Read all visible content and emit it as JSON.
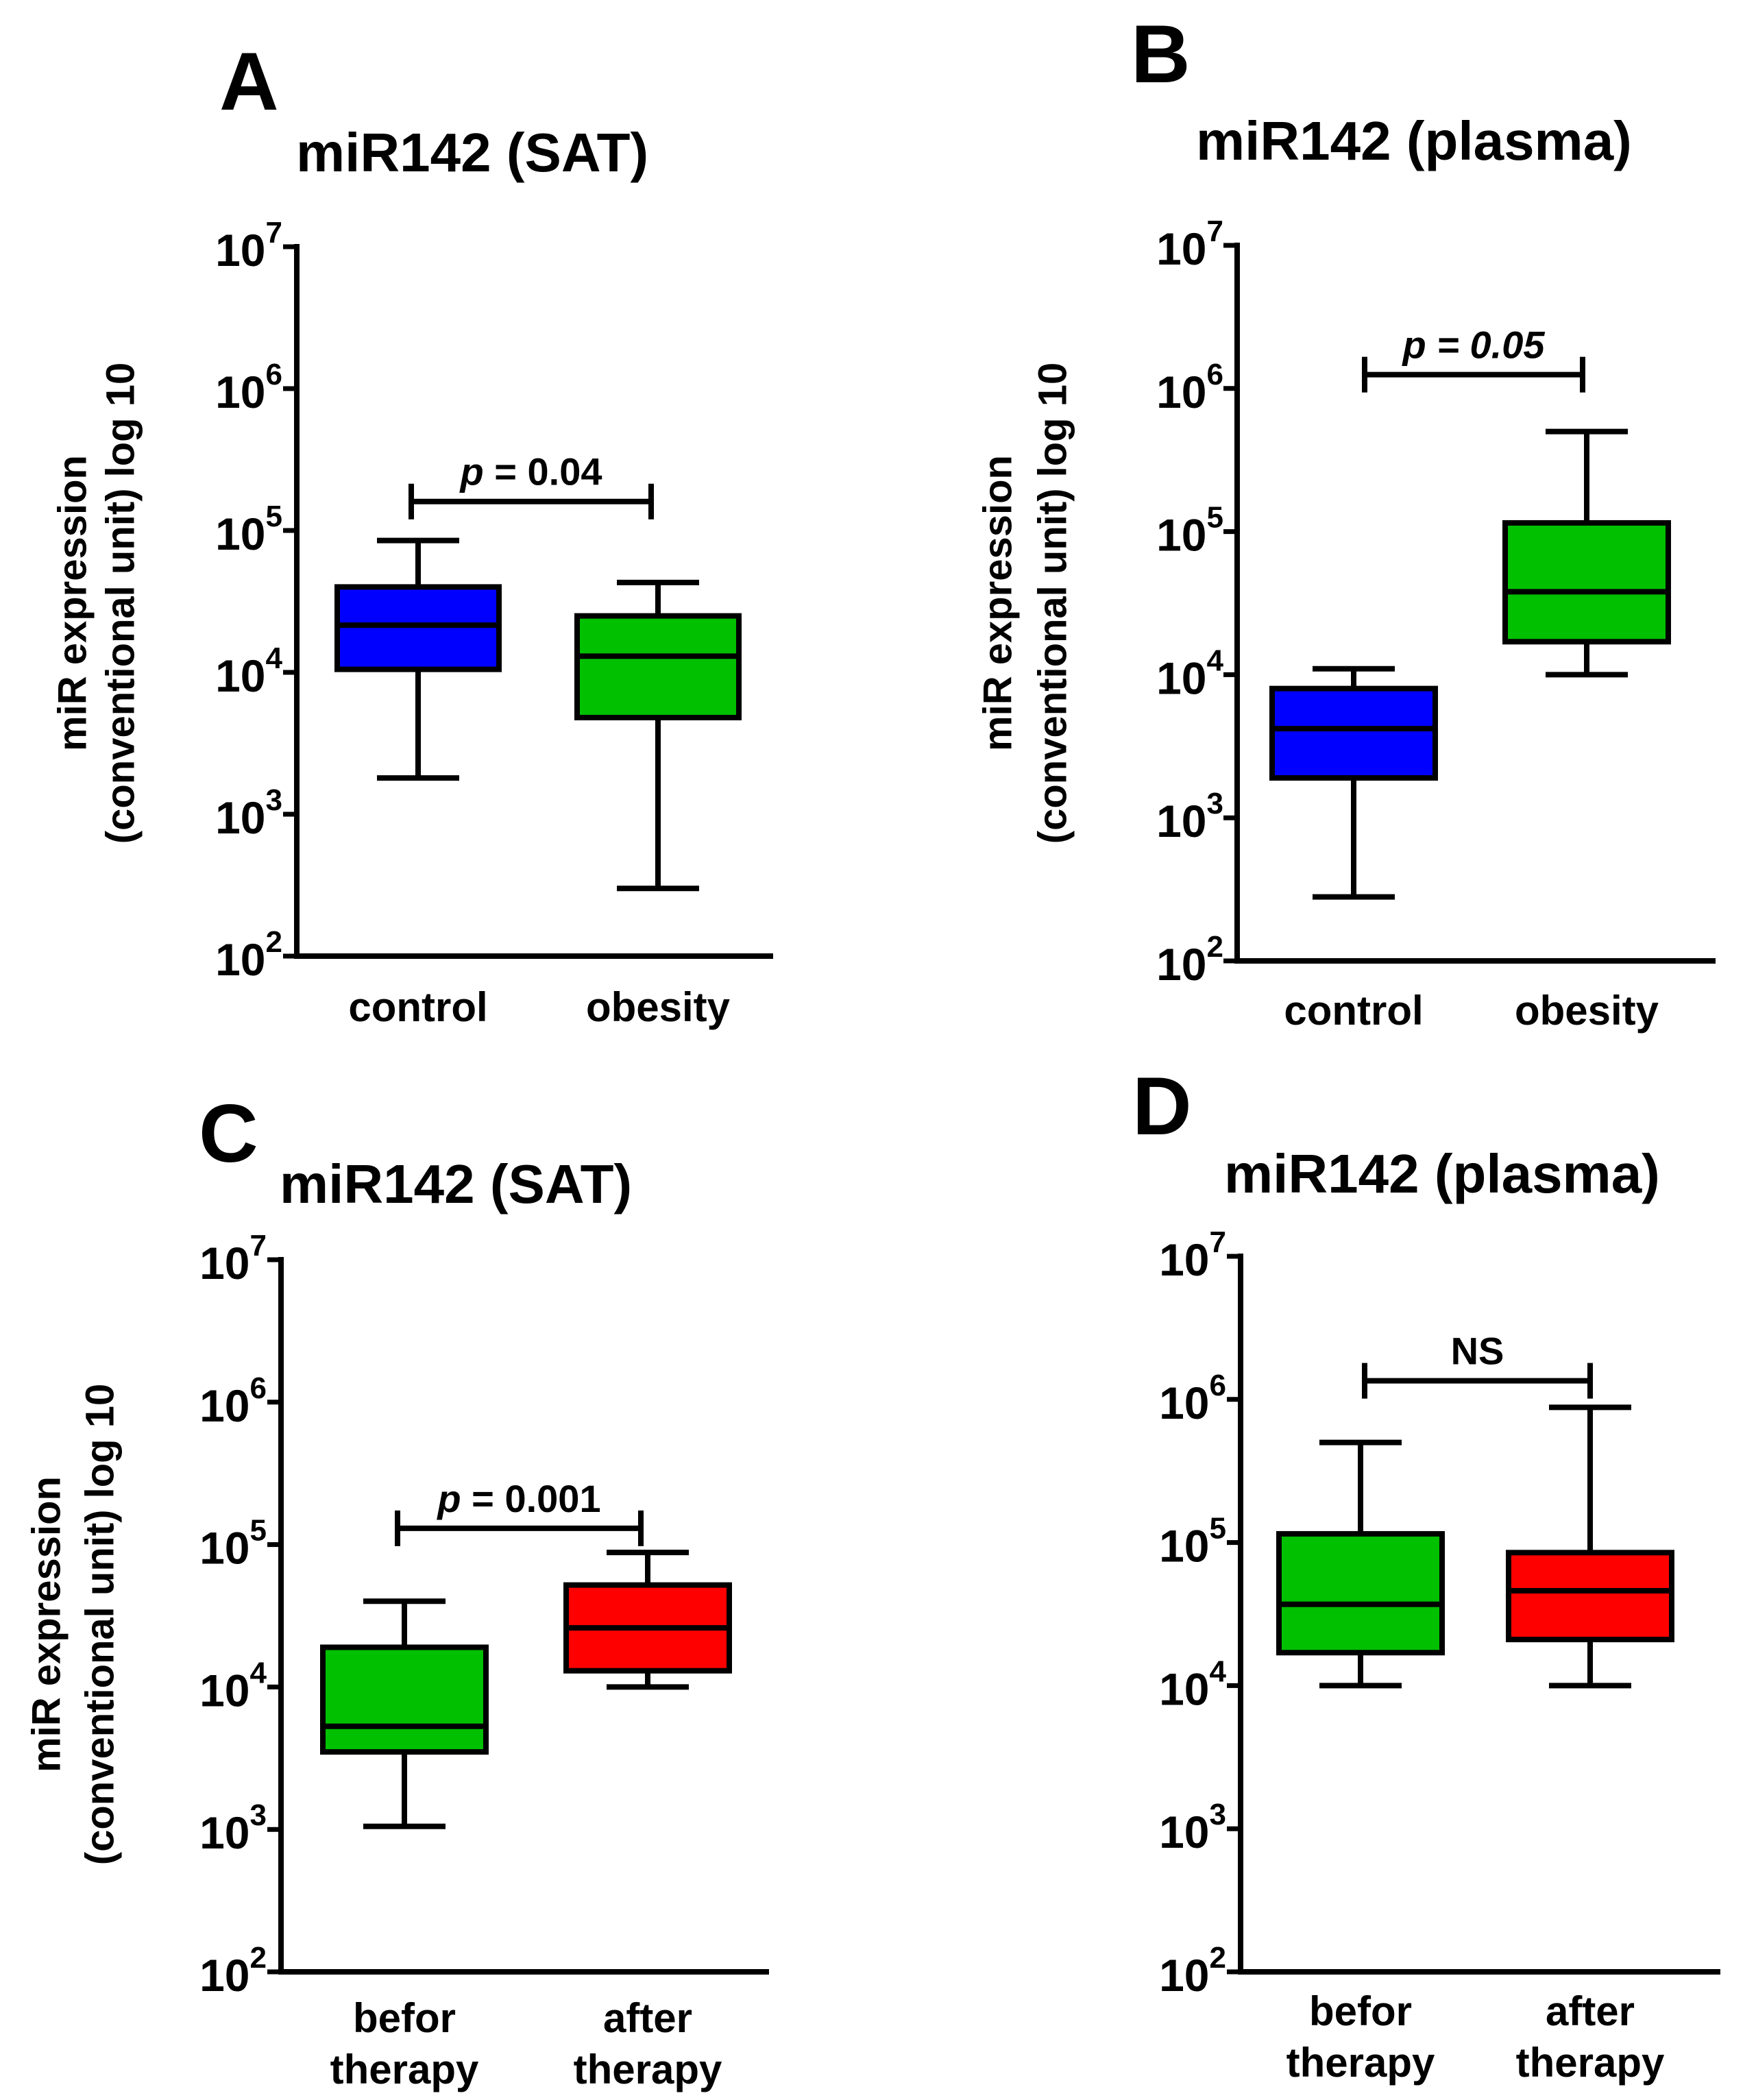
{
  "chart_data": [
    {
      "type": "box",
      "panel_letter": "A",
      "title": "miR142 (SAT)",
      "ylabel_line1": "miR expression",
      "ylabel_line2": "(conventional unit) log 10",
      "y_scale": "log10",
      "ylim": [
        100,
        10000000
      ],
      "yticks": [
        {
          "base": "10",
          "exp": "2"
        },
        {
          "base": "10",
          "exp": "3"
        },
        {
          "base": "10",
          "exp": "4"
        },
        {
          "base": "10",
          "exp": "5"
        },
        {
          "base": "10",
          "exp": "6"
        },
        {
          "base": "10",
          "exp": "7"
        }
      ],
      "categories": [
        [
          "control"
        ],
        [
          "obesity"
        ]
      ],
      "boxes": [
        {
          "category": "control",
          "min": 1800,
          "q1": 10500,
          "median": 21500,
          "q3": 40000,
          "max": 85000,
          "color": "#0000ff"
        },
        {
          "category": "obesity",
          "min": 300,
          "q1": 4800,
          "median": 13000,
          "q3": 25000,
          "max": 43000,
          "color": "#00c000"
        }
      ],
      "annotation": {
        "prefix": "p",
        "rest": " = 0.04",
        "italic": false,
        "bracket_y": 160000
      }
    },
    {
      "type": "box",
      "panel_letter": "B",
      "title": "miR142 (plasma)",
      "ylabel_line1": "miR expression",
      "ylabel_line2": "(conventional unit) log 10",
      "y_scale": "log10",
      "ylim": [
        100,
        10000000
      ],
      "yticks": [
        {
          "base": "10",
          "exp": "2"
        },
        {
          "base": "10",
          "exp": "3"
        },
        {
          "base": "10",
          "exp": "4"
        },
        {
          "base": "10",
          "exp": "5"
        },
        {
          "base": "10",
          "exp": "6"
        },
        {
          "base": "10",
          "exp": "7"
        }
      ],
      "categories": [
        [
          "control"
        ],
        [
          "obesity"
        ]
      ],
      "boxes": [
        {
          "category": "control",
          "min": 280,
          "q1": 1900,
          "median": 4200,
          "q3": 8000,
          "max": 11000,
          "color": "#0000ff"
        },
        {
          "category": "obesity",
          "min": 10000,
          "q1": 17000,
          "median": 38000,
          "q3": 115000,
          "max": 500000,
          "color": "#00c000"
        }
      ],
      "annotation": {
        "prefix": "p",
        "rest": " = 0.05",
        "italic": true,
        "bracket_y": 1250000
      }
    },
    {
      "type": "box",
      "panel_letter": "C",
      "title": "miR142 (SAT)",
      "ylabel_line1": "miR expression",
      "ylabel_line2": "(conventional unit) log 10",
      "y_scale": "log10",
      "ylim": [
        100,
        10000000
      ],
      "yticks": [
        {
          "base": "10",
          "exp": "2"
        },
        {
          "base": "10",
          "exp": "3"
        },
        {
          "base": "10",
          "exp": "4"
        },
        {
          "base": "10",
          "exp": "5"
        },
        {
          "base": "10",
          "exp": "6"
        },
        {
          "base": "10",
          "exp": "7"
        }
      ],
      "categories": [
        [
          "befor",
          "therapy"
        ],
        [
          "after",
          "therapy"
        ]
      ],
      "boxes": [
        {
          "category": "befor therapy",
          "min": 1050,
          "q1": 3500,
          "median": 5300,
          "q3": 19000,
          "max": 40000,
          "color": "#00c000"
        },
        {
          "category": "after therapy",
          "min": 10000,
          "q1": 13000,
          "median": 26000,
          "q3": 52000,
          "max": 88000,
          "color": "#ff0000"
        }
      ],
      "annotation": {
        "prefix": "p",
        "rest": " = 0.001",
        "italic": false,
        "bracket_y": 130000
      }
    },
    {
      "type": "box",
      "panel_letter": "D",
      "title": "miR142 (plasma)",
      "ylabel_line1": "",
      "ylabel_line2": "",
      "y_scale": "log10",
      "ylim": [
        100,
        10000000
      ],
      "yticks": [
        {
          "base": "10",
          "exp": "2"
        },
        {
          "base": "10",
          "exp": "3"
        },
        {
          "base": "10",
          "exp": "4"
        },
        {
          "base": "10",
          "exp": "5"
        },
        {
          "base": "10",
          "exp": "6"
        },
        {
          "base": "10",
          "exp": "7"
        }
      ],
      "categories": [
        [
          "befor",
          "therapy"
        ],
        [
          "after",
          "therapy"
        ]
      ],
      "boxes": [
        {
          "category": "befor therapy",
          "min": 10000,
          "q1": 17000,
          "median": 37000,
          "q3": 115000,
          "max": 500000,
          "color": "#00c000"
        },
        {
          "category": "after therapy",
          "min": 10000,
          "q1": 21000,
          "median": 46000,
          "q3": 85000,
          "max": 880000,
          "color": "#ff0000"
        }
      ],
      "annotation": {
        "prefix": "",
        "rest": "NS",
        "italic": false,
        "bracket_y": 1350000
      }
    }
  ]
}
